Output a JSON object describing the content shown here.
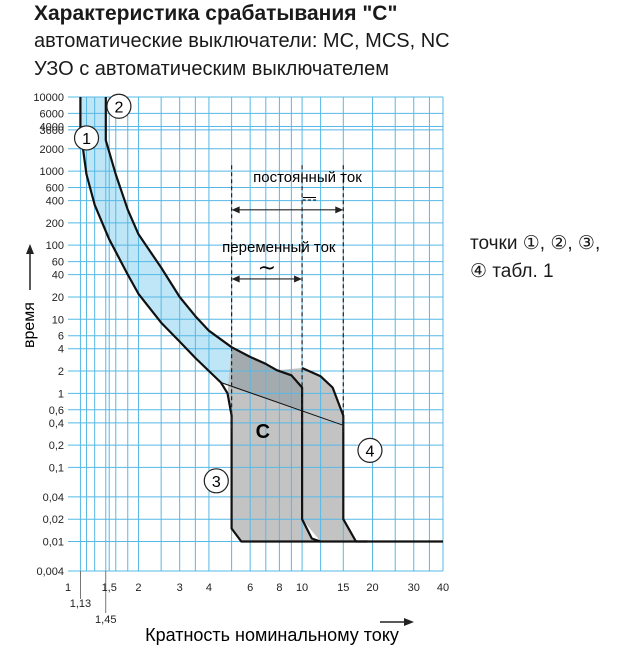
{
  "header": {
    "title": "Характеристика срабатывания \"C\"",
    "subtitle_line1": "автоматические выключатели: MC, MCS, NC",
    "subtitle_line2": "УЗО с автоматическим выключателем"
  },
  "side_note": {
    "line1": "точки ①, ②, ③,",
    "line2": "④   табл. 1"
  },
  "colors": {
    "grid": "#56b8e6",
    "band_fill": "#bfe6f7",
    "zone_fill": "#c3c3c3",
    "zone_dark": "#9fa7ab",
    "curve": "#111111"
  },
  "chart_data": {
    "type": "line",
    "title": "Характеристика срабатывания \"C\"",
    "xlabel": "Кратность номинальному току",
    "ylabel": "время",
    "x_scale": "log",
    "y_scale": "log",
    "xlim": [
      1,
      40
    ],
    "ylim": [
      0.004,
      10000
    ],
    "grid": true,
    "x_ticks": [
      {
        "v": 1,
        "l": "1",
        "row": 0
      },
      {
        "v": 1.13,
        "l": "1,13",
        "row": 1
      },
      {
        "v": 1.45,
        "l": "1,45",
        "row": 2
      },
      {
        "v": 1.5,
        "l": "1,5",
        "row": 0
      },
      {
        "v": 2,
        "l": "2",
        "row": 0
      },
      {
        "v": 3,
        "l": "3",
        "row": 0
      },
      {
        "v": 4,
        "l": "4",
        "row": 0
      },
      {
        "v": 6,
        "l": "6",
        "row": 0
      },
      {
        "v": 8,
        "l": "8",
        "row": 0
      },
      {
        "v": 10,
        "l": "10",
        "row": 0
      },
      {
        "v": 15,
        "l": "15",
        "row": 0
      },
      {
        "v": 20,
        "l": "20",
        "row": 0
      },
      {
        "v": 30,
        "l": "30",
        "row": 0
      },
      {
        "v": 40,
        "l": "40",
        "row": 0
      }
    ],
    "x_grid": [
      1.13,
      1.2,
      1.3,
      1.45,
      1.5,
      1.6,
      1.8,
      2,
      2.5,
      3,
      3.5,
      4,
      5,
      6,
      7,
      8,
      9,
      10,
      12,
      15,
      20,
      25,
      30,
      35,
      40
    ],
    "y_ticks": [
      {
        "v": 10000,
        "l": "10000"
      },
      {
        "v": 6000,
        "l": "6000"
      },
      {
        "v": 4000,
        "l": "4000"
      },
      {
        "v": 3600,
        "l": "3600"
      },
      {
        "v": 2000,
        "l": "2000"
      },
      {
        "v": 1000,
        "l": "1000"
      },
      {
        "v": 600,
        "l": "600"
      },
      {
        "v": 400,
        "l": "400"
      },
      {
        "v": 200,
        "l": "200"
      },
      {
        "v": 100,
        "l": "100"
      },
      {
        "v": 60,
        "l": "60"
      },
      {
        "v": 40,
        "l": "40"
      },
      {
        "v": 20,
        "l": "20"
      },
      {
        "v": 10,
        "l": "10"
      },
      {
        "v": 6,
        "l": "6"
      },
      {
        "v": 4,
        "l": "4"
      },
      {
        "v": 2,
        "l": "2"
      },
      {
        "v": 1,
        "l": "1"
      },
      {
        "v": 0.6,
        "l": "0,6"
      },
      {
        "v": 0.4,
        "l": "0,4"
      },
      {
        "v": 0.2,
        "l": "0,2"
      },
      {
        "v": 0.1,
        "l": "0,1"
      },
      {
        "v": 0.04,
        "l": "0,04"
      },
      {
        "v": 0.02,
        "l": "0,02"
      },
      {
        "v": 0.01,
        "l": "0,01"
      },
      {
        "v": 0.004,
        "l": "0,004"
      }
    ],
    "y_grid": [
      10000,
      6000,
      4000,
      3600,
      2000,
      1000,
      600,
      400,
      200,
      100,
      60,
      40,
      20,
      10,
      6,
      4,
      2,
      1,
      0.6,
      0.4,
      0.2,
      0.1,
      0.04,
      0.02,
      0.01,
      0.004
    ],
    "series": [
      {
        "key": "lower",
        "points": [
          [
            1.13,
            10000
          ],
          [
            1.13,
            3600
          ],
          [
            1.2,
            900
          ],
          [
            1.3,
            350
          ],
          [
            1.5,
            120
          ],
          [
            1.8,
            40
          ],
          [
            2,
            22
          ],
          [
            2.5,
            9
          ],
          [
            3,
            5
          ],
          [
            3.5,
            3
          ],
          [
            4,
            2
          ],
          [
            4.5,
            1.4
          ],
          [
            4.8,
            1.0
          ],
          [
            5,
            0.5
          ],
          [
            5,
            0.015
          ],
          [
            5.5,
            0.01
          ],
          [
            40,
            0.01
          ]
        ]
      },
      {
        "key": "upper",
        "points": [
          [
            1.45,
            10000
          ],
          [
            1.45,
            2600
          ],
          [
            1.6,
            900
          ],
          [
            1.8,
            300
          ],
          [
            2,
            140
          ],
          [
            2.5,
            50
          ],
          [
            3,
            20
          ],
          [
            3.5,
            11
          ],
          [
            4,
            7
          ],
          [
            5,
            4.2
          ],
          [
            6,
            3.1
          ],
          [
            7,
            2.5
          ],
          [
            7.8,
            2.05
          ],
          [
            9,
            1.75
          ],
          [
            10,
            1.2
          ],
          [
            10,
            0.02
          ],
          [
            11,
            0.011
          ],
          [
            12,
            0.01
          ]
        ]
      },
      {
        "key": "dc",
        "points": [
          [
            10,
            2.2
          ],
          [
            12,
            1.7
          ],
          [
            13.5,
            1.2
          ],
          [
            15,
            0.5
          ],
          [
            15,
            0.02
          ],
          [
            17,
            0.01
          ],
          [
            19,
            0.01
          ]
        ]
      }
    ],
    "boundary_line": [
      [
        4.5,
        1.4
      ],
      [
        15,
        0.37
      ]
    ],
    "zone_label": "C",
    "dc_range": {
      "label": "постоянный ток",
      "symbol": "⎓",
      "x": [
        5,
        15
      ],
      "y_arrow": 300
    },
    "ac_range": {
      "label": "переменный ток",
      "symbol": "~",
      "x": [
        5,
        10
      ],
      "y_arrow": 35
    },
    "markers": [
      {
        "label": "1",
        "x": 1.2,
        "y": 2800
      },
      {
        "label": "2",
        "x": 1.65,
        "y": 7500
      },
      {
        "label": "3",
        "x": 4.3,
        "y": 0.066
      },
      {
        "label": "4",
        "x": 19.5,
        "y": 0.17
      }
    ]
  }
}
